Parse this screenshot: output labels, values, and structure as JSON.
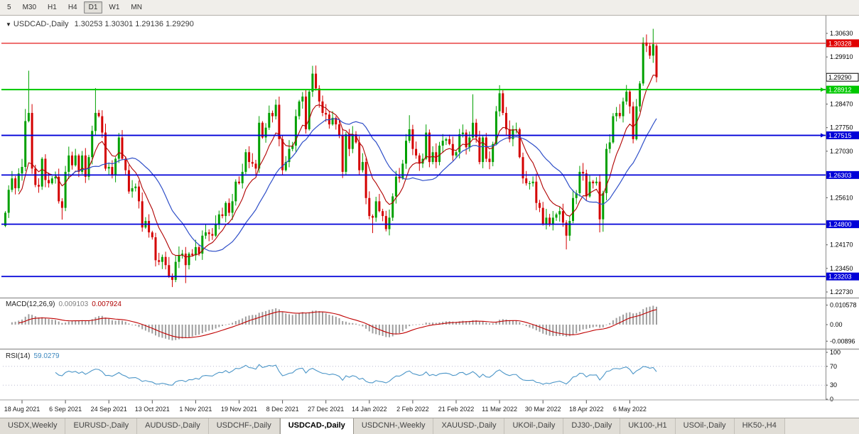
{
  "toolbar": {
    "timeframes": [
      "5",
      "M30",
      "H1",
      "H4",
      "D1",
      "W1",
      "MN"
    ],
    "active_timeframe": "D1"
  },
  "chart": {
    "title_marker": "▼",
    "title": "USDCAD-,Daily",
    "ohlc_text": "1.30253 1.30301 1.29136 1.29290",
    "macd_label": "MACD(12,26,9)",
    "macd_value": "0.009103",
    "macd_signal_value": "0.007924",
    "rsi_label": "RSI(14)",
    "rsi_value": "59.0279"
  },
  "colors": {
    "candle_up": "#00A000",
    "candle_down": "#D40000",
    "ma_fast": "#B00000",
    "ma_slow": "#2F4FC8",
    "macd_hist": "#9E9E9E",
    "macd_signal": "#C00000",
    "rsi_line": "#4C96C8",
    "axis_text": "#000000",
    "date_text": "#222222",
    "separator": "#A0A0A0"
  },
  "chart_data": {
    "type": "candlestick+indicators",
    "symbol": "USDCAD",
    "timeframe": "Daily",
    "last_ohlc": {
      "o": 1.30253,
      "h": 1.30301,
      "l": 1.29136,
      "c": 1.2929
    },
    "current_price": 1.2929,
    "current_label": "1.29290",
    "closes": [
      1.2515,
      1.2585,
      1.262,
      1.259,
      1.2635,
      1.2655,
      1.2795,
      1.282,
      1.265,
      1.26,
      1.2595,
      1.268,
      1.2615,
      1.2605,
      1.262,
      1.2625,
      1.255,
      1.253,
      1.264,
      1.269,
      1.266,
      1.269,
      1.264,
      1.269,
      1.2625,
      1.2685,
      1.2765,
      1.282,
      1.281,
      1.276,
      1.265,
      1.2655,
      1.263,
      1.268,
      1.2745,
      1.268,
      1.2645,
      1.258,
      1.259,
      1.2595,
      1.255,
      1.247,
      1.249,
      1.2455,
      1.244,
      1.237,
      1.2365,
      1.238,
      1.2355,
      1.232,
      1.231,
      1.2365,
      1.2385,
      1.239,
      1.2355,
      1.239,
      1.2385,
      1.241,
      1.239,
      1.2445,
      1.2455,
      1.245,
      1.2445,
      1.248,
      1.251,
      1.2505,
      1.2545,
      1.2515,
      1.255,
      1.261,
      1.2605,
      1.264,
      1.27,
      1.267,
      1.2665,
      1.265,
      1.279,
      1.2745,
      1.2775,
      1.282,
      1.281,
      1.2845,
      1.274,
      1.2645,
      1.267,
      1.271,
      1.272,
      1.281,
      1.2855,
      1.287,
      1.277,
      1.2885,
      1.294,
      1.2895,
      1.2855,
      1.282,
      1.2815,
      1.2785,
      1.2805,
      1.2785,
      1.275,
      1.264,
      1.2755,
      1.271,
      1.2755,
      1.273,
      1.2645,
      1.267,
      1.256,
      1.2505,
      1.25,
      1.255,
      1.252,
      1.2505,
      1.2465,
      1.25,
      1.2565,
      1.2625,
      1.262,
      1.2665,
      1.2735,
      1.277,
      1.271,
      1.269,
      1.2665,
      1.268,
      1.276,
      1.267,
      1.27,
      1.267,
      1.272,
      1.2735,
      1.274,
      1.2725,
      1.269,
      1.27,
      1.2755,
      1.276,
      1.2715,
      1.2745,
      1.279,
      1.2745,
      1.267,
      1.2745,
      1.268,
      1.267,
      1.2725,
      1.2825,
      1.288,
      1.282,
      1.277,
      1.274,
      1.277,
      1.277,
      1.2685,
      1.262,
      1.2605,
      1.2605,
      1.261,
      1.2545,
      1.253,
      1.248,
      1.25,
      1.248,
      1.25,
      1.251,
      1.252,
      1.2485,
      1.2445,
      1.249,
      1.256,
      1.2575,
      1.264,
      1.2635,
      1.2565,
      1.261,
      1.2605,
      1.261,
      1.2495,
      1.2575,
      1.271,
      1.273,
      1.281,
      1.282,
      1.281,
      1.2855,
      1.2885,
      1.284,
      1.274,
      1.284,
      1.291,
      1.3035,
      1.3025,
      1.2995,
      1.303,
      1.2929
    ],
    "spike_highs": {
      "6": 1.2832,
      "7": 1.2949,
      "27": 1.2896,
      "76": 1.2805,
      "92": 1.2964,
      "121": 1.2813,
      "140": 1.2877,
      "148": 1.2901,
      "194": 1.3077
    },
    "spike_lows": {
      "17": 1.2494,
      "50": 1.2288,
      "54": 1.23,
      "110": 1.2453,
      "168": 1.2403,
      "178": 1.2455,
      "179": 1.2457
    },
    "hlines": [
      {
        "price": 1.30328,
        "label": "1.30328",
        "color": "#E00000",
        "w": 1.2,
        "arrow": false
      },
      {
        "price": 1.28912,
        "label": "1.28912",
        "color": "#00C800",
        "w": 2.0,
        "arrow": true
      },
      {
        "price": 1.27515,
        "label": "1.27515",
        "color": "#0000D8",
        "w": 1.8,
        "arrow": true
      },
      {
        "price": 1.26303,
        "label": "1.26303",
        "color": "#0000D8",
        "w": 1.8,
        "arrow": false
      },
      {
        "price": 1.248,
        "label": "1.24800",
        "color": "#0000D8",
        "w": 1.8,
        "arrow": false
      },
      {
        "price": 1.23203,
        "label": "1.23203",
        "color": "#0000D8",
        "w": 1.8,
        "arrow": false
      }
    ],
    "y_ticks": [
      1.3063,
      1.2991,
      1.2847,
      1.2775,
      1.2703,
      1.2561,
      1.2417,
      1.2345,
      1.2273
    ],
    "macd_ticks": [
      {
        "v": 0.010578,
        "t": "0.010578"
      },
      {
        "v": 0,
        "t": "0.00"
      },
      {
        "v": -0.00896,
        "t": "-0.00896"
      }
    ],
    "rsi_ticks": [
      100,
      70,
      30,
      0
    ],
    "rsi_levels": [
      70,
      30
    ],
    "x_ticks": [
      {
        "label": "18 Aug 2021",
        "bar": 5
      },
      {
        "label": "6 Sep 2021",
        "bar": 18
      },
      {
        "label": "24 Sep 2021",
        "bar": 31
      },
      {
        "label": "13 Oct 2021",
        "bar": 44
      },
      {
        "label": "1 Nov 2021",
        "bar": 57
      },
      {
        "label": "19 Nov 2021",
        "bar": 70
      },
      {
        "label": "8 Dec 2021",
        "bar": 83
      },
      {
        "label": "27 Dec 2021",
        "bar": 96
      },
      {
        "label": "14 Jan 2022",
        "bar": 109
      },
      {
        "label": "2 Feb 2022",
        "bar": 122
      },
      {
        "label": "21 Feb 2022",
        "bar": 135
      },
      {
        "label": "11 Mar 2022",
        "bar": 148
      },
      {
        "label": "30 Mar 2022",
        "bar": 161
      },
      {
        "label": "18 Apr 2022",
        "bar": 174
      },
      {
        "label": "6 May 2022",
        "bar": 187
      }
    ],
    "indicators": {
      "ma_fast": {
        "type": "EMA",
        "period": 9
      },
      "ma_slow": {
        "type": "SMA",
        "period": 21
      },
      "macd": {
        "fast": 12,
        "slow": 26,
        "signal": 9
      },
      "rsi": {
        "period": 14,
        "levels": [
          70,
          30
        ]
      }
    }
  },
  "tabs": {
    "items": [
      "USDX,Weekly",
      "EURUSD-,Daily",
      "AUDUSD-,Daily",
      "USDCHF-,Daily",
      "USDCAD-,Daily",
      "USDCNH-,Weekly",
      "XAUUSD-,Daily",
      "UKOil-,Daily",
      "DJ30-,Daily",
      "UK100-,H1",
      "USOil-,Daily",
      "HK50-,H4"
    ],
    "active": "USDCAD-,Daily"
  }
}
